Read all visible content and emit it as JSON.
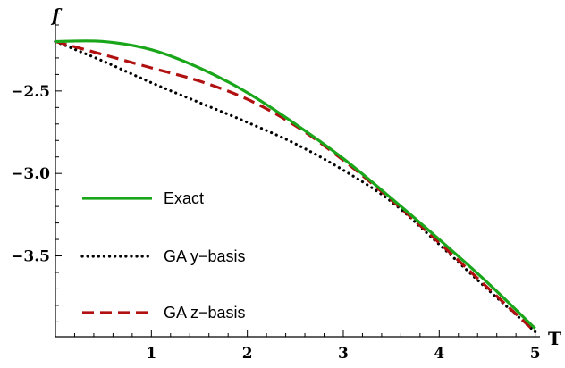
{
  "chart_data": {
    "type": "line",
    "xlabel": "T",
    "ylabel": "f",
    "xlim": [
      0,
      5.05
    ],
    "ylim": [
      -3.99,
      -2.1
    ],
    "xticks": [
      1,
      2,
      3,
      4,
      5
    ],
    "yticks": [
      -2.5,
      -3.0,
      -3.5
    ],
    "ytick_labels": [
      "−2.5",
      "−3.0",
      "−3.5"
    ],
    "xtick_labels": [
      "1",
      "2",
      "3",
      "4",
      "5"
    ],
    "grid": false,
    "legend": "bottom-left",
    "series": [
      {
        "name": "Exact",
        "color": "#1aa61a",
        "dash": "solid",
        "x": [
          0,
          0.5,
          1.0,
          1.5,
          2.0,
          2.5,
          3.0,
          3.5,
          4.0,
          4.5,
          5.0
        ],
        "y": [
          -2.2,
          -2.2,
          -2.25,
          -2.36,
          -2.51,
          -2.7,
          -2.91,
          -3.15,
          -3.4,
          -3.66,
          -3.94
        ]
      },
      {
        "name": "GA y−basis",
        "color": "#000000",
        "dash": "dotted",
        "x": [
          0,
          0.5,
          1.0,
          1.5,
          2.0,
          2.5,
          3.0,
          3.5,
          4.0,
          4.5,
          5.0
        ],
        "y": [
          -2.2,
          -2.32,
          -2.45,
          -2.57,
          -2.69,
          -2.82,
          -2.98,
          -3.17,
          -3.43,
          -3.7,
          -3.96
        ]
      },
      {
        "name": "GA z−basis",
        "color": "#b01010",
        "dash": "dashed",
        "x": [
          0,
          0.5,
          1.0,
          1.5,
          2.0,
          2.5,
          3.0,
          3.5,
          4.0,
          4.5,
          5.0
        ],
        "y": [
          -2.2,
          -2.28,
          -2.36,
          -2.44,
          -2.55,
          -2.71,
          -2.92,
          -3.16,
          -3.42,
          -3.69,
          -3.96
        ]
      }
    ]
  }
}
